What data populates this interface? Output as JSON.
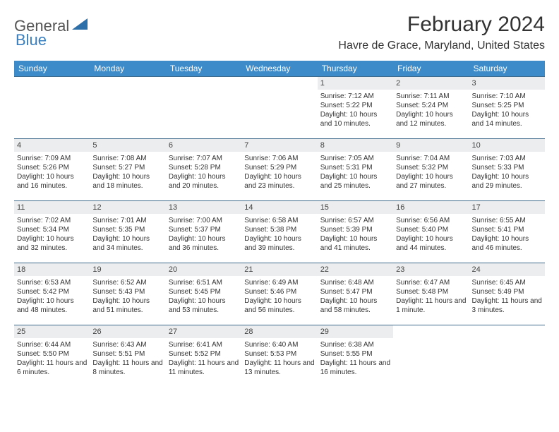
{
  "logo": {
    "general": "General",
    "blue": "Blue"
  },
  "header": {
    "month_title": "February 2024",
    "location": "Havre de Grace, Maryland, United States"
  },
  "dow": [
    "Sunday",
    "Monday",
    "Tuesday",
    "Wednesday",
    "Thursday",
    "Friday",
    "Saturday"
  ],
  "colors": {
    "header_bg": "#3d8bc8",
    "row_border": "#3d6a8a",
    "daynum_bg": "#ecedee",
    "logo_blue": "#3a7fc0"
  },
  "weeks": [
    [
      null,
      null,
      null,
      null,
      {
        "n": "1",
        "sr": "Sunrise: 7:12 AM",
        "ss": "Sunset: 5:22 PM",
        "dl": "Daylight: 10 hours and 10 minutes."
      },
      {
        "n": "2",
        "sr": "Sunrise: 7:11 AM",
        "ss": "Sunset: 5:24 PM",
        "dl": "Daylight: 10 hours and 12 minutes."
      },
      {
        "n": "3",
        "sr": "Sunrise: 7:10 AM",
        "ss": "Sunset: 5:25 PM",
        "dl": "Daylight: 10 hours and 14 minutes."
      }
    ],
    [
      {
        "n": "4",
        "sr": "Sunrise: 7:09 AM",
        "ss": "Sunset: 5:26 PM",
        "dl": "Daylight: 10 hours and 16 minutes."
      },
      {
        "n": "5",
        "sr": "Sunrise: 7:08 AM",
        "ss": "Sunset: 5:27 PM",
        "dl": "Daylight: 10 hours and 18 minutes."
      },
      {
        "n": "6",
        "sr": "Sunrise: 7:07 AM",
        "ss": "Sunset: 5:28 PM",
        "dl": "Daylight: 10 hours and 20 minutes."
      },
      {
        "n": "7",
        "sr": "Sunrise: 7:06 AM",
        "ss": "Sunset: 5:29 PM",
        "dl": "Daylight: 10 hours and 23 minutes."
      },
      {
        "n": "8",
        "sr": "Sunrise: 7:05 AM",
        "ss": "Sunset: 5:31 PM",
        "dl": "Daylight: 10 hours and 25 minutes."
      },
      {
        "n": "9",
        "sr": "Sunrise: 7:04 AM",
        "ss": "Sunset: 5:32 PM",
        "dl": "Daylight: 10 hours and 27 minutes."
      },
      {
        "n": "10",
        "sr": "Sunrise: 7:03 AM",
        "ss": "Sunset: 5:33 PM",
        "dl": "Daylight: 10 hours and 29 minutes."
      }
    ],
    [
      {
        "n": "11",
        "sr": "Sunrise: 7:02 AM",
        "ss": "Sunset: 5:34 PM",
        "dl": "Daylight: 10 hours and 32 minutes."
      },
      {
        "n": "12",
        "sr": "Sunrise: 7:01 AM",
        "ss": "Sunset: 5:35 PM",
        "dl": "Daylight: 10 hours and 34 minutes."
      },
      {
        "n": "13",
        "sr": "Sunrise: 7:00 AM",
        "ss": "Sunset: 5:37 PM",
        "dl": "Daylight: 10 hours and 36 minutes."
      },
      {
        "n": "14",
        "sr": "Sunrise: 6:58 AM",
        "ss": "Sunset: 5:38 PM",
        "dl": "Daylight: 10 hours and 39 minutes."
      },
      {
        "n": "15",
        "sr": "Sunrise: 6:57 AM",
        "ss": "Sunset: 5:39 PM",
        "dl": "Daylight: 10 hours and 41 minutes."
      },
      {
        "n": "16",
        "sr": "Sunrise: 6:56 AM",
        "ss": "Sunset: 5:40 PM",
        "dl": "Daylight: 10 hours and 44 minutes."
      },
      {
        "n": "17",
        "sr": "Sunrise: 6:55 AM",
        "ss": "Sunset: 5:41 PM",
        "dl": "Daylight: 10 hours and 46 minutes."
      }
    ],
    [
      {
        "n": "18",
        "sr": "Sunrise: 6:53 AM",
        "ss": "Sunset: 5:42 PM",
        "dl": "Daylight: 10 hours and 48 minutes."
      },
      {
        "n": "19",
        "sr": "Sunrise: 6:52 AM",
        "ss": "Sunset: 5:43 PM",
        "dl": "Daylight: 10 hours and 51 minutes."
      },
      {
        "n": "20",
        "sr": "Sunrise: 6:51 AM",
        "ss": "Sunset: 5:45 PM",
        "dl": "Daylight: 10 hours and 53 minutes."
      },
      {
        "n": "21",
        "sr": "Sunrise: 6:49 AM",
        "ss": "Sunset: 5:46 PM",
        "dl": "Daylight: 10 hours and 56 minutes."
      },
      {
        "n": "22",
        "sr": "Sunrise: 6:48 AM",
        "ss": "Sunset: 5:47 PM",
        "dl": "Daylight: 10 hours and 58 minutes."
      },
      {
        "n": "23",
        "sr": "Sunrise: 6:47 AM",
        "ss": "Sunset: 5:48 PM",
        "dl": "Daylight: 11 hours and 1 minute."
      },
      {
        "n": "24",
        "sr": "Sunrise: 6:45 AM",
        "ss": "Sunset: 5:49 PM",
        "dl": "Daylight: 11 hours and 3 minutes."
      }
    ],
    [
      {
        "n": "25",
        "sr": "Sunrise: 6:44 AM",
        "ss": "Sunset: 5:50 PM",
        "dl": "Daylight: 11 hours and 6 minutes."
      },
      {
        "n": "26",
        "sr": "Sunrise: 6:43 AM",
        "ss": "Sunset: 5:51 PM",
        "dl": "Daylight: 11 hours and 8 minutes."
      },
      {
        "n": "27",
        "sr": "Sunrise: 6:41 AM",
        "ss": "Sunset: 5:52 PM",
        "dl": "Daylight: 11 hours and 11 minutes."
      },
      {
        "n": "28",
        "sr": "Sunrise: 6:40 AM",
        "ss": "Sunset: 5:53 PM",
        "dl": "Daylight: 11 hours and 13 minutes."
      },
      {
        "n": "29",
        "sr": "Sunrise: 6:38 AM",
        "ss": "Sunset: 5:55 PM",
        "dl": "Daylight: 11 hours and 16 minutes."
      },
      null,
      null
    ]
  ]
}
